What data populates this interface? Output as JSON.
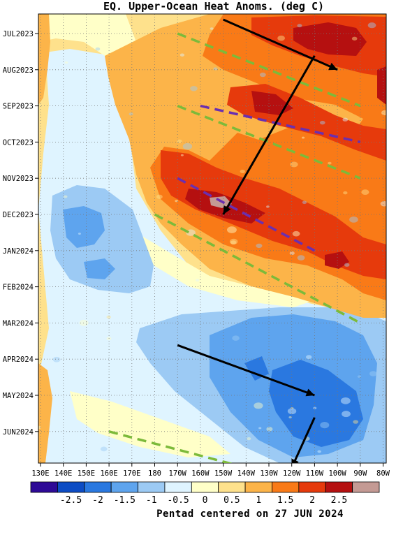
{
  "chart_data": {
    "type": "heatmap",
    "title": "EQ. Upper-Ocean Heat Anoms. (deg C)",
    "footer": "Pentad centered on 27 JUN 2024",
    "x_ticks": [
      "130E",
      "140E",
      "150E",
      "160E",
      "170E",
      "180",
      "170W",
      "160W",
      "150W",
      "140W",
      "130W",
      "120W",
      "110W",
      "100W",
      "90W",
      "80W"
    ],
    "y_ticks": [
      "JUL2023",
      "AUG2023",
      "SEP2023",
      "OCT2023",
      "NOV2023",
      "DEC2023",
      "JAN2024",
      "FEB2024",
      "MAR2024",
      "APR2024",
      "MAY2024",
      "JUN2024"
    ],
    "colorbar": {
      "labels": [
        "-2.5",
        "-2",
        "-1.5",
        "-1",
        "-0.5",
        "0",
        "0.5",
        "1",
        "1.5",
        "2",
        "2.5"
      ],
      "colors": [
        "#2e0a96",
        "#0d4cc4",
        "#2a78e0",
        "#5ea4ee",
        "#9ccaf4",
        "#dff4ff",
        "#ffffc8",
        "#fee18c",
        "#fcb449",
        "#f97a17",
        "#e63a0c",
        "#b51010",
        "#c49a94"
      ]
    },
    "anomaly_features": [
      {
        "region": "eastern Pacific, mid-2023 to early 2024",
        "value_range": [
          1.0,
          2.5
        ],
        "sign": "warm"
      },
      {
        "region": "central/eastern Pacific, Mar-Jun 2024",
        "value_range": [
          -2.0,
          -0.5
        ],
        "sign": "cool"
      },
      {
        "region": "western Pacific, Nov 2023 - Feb 2024",
        "value_range": [
          -1.5,
          -0.5
        ],
        "sign": "cool"
      }
    ],
    "annotations": {
      "arrows": [
        {
          "from": [
            "150W",
            "JUL2023"
          ],
          "to": [
            "100W",
            "AUG2023"
          ]
        },
        {
          "from": [
            "110W",
            "AUG2023"
          ],
          "to": [
            "150W",
            "DEC2023"
          ]
        },
        {
          "from": [
            "170W",
            "APR2024"
          ],
          "to": [
            "110W",
            "MAY2024"
          ]
        },
        {
          "from": [
            "110W",
            "JUN2024"
          ],
          "to": [
            "120W",
            "JUL2024"
          ]
        }
      ],
      "dashed_lines": [
        {
          "color": "green",
          "from": [
            "170W",
            "JUL2023"
          ],
          "to": [
            "90W",
            "SEP2023"
          ]
        },
        {
          "color": "purple",
          "from": [
            "160W",
            "SEP2023"
          ],
          "to": [
            "90W",
            "OCT2023"
          ]
        },
        {
          "color": "green",
          "from": [
            "170W",
            "SEP2023"
          ],
          "to": [
            "90W",
            "NOV2023"
          ]
        },
        {
          "color": "purple",
          "from": [
            "170W",
            "NOV2023"
          ],
          "to": [
            "110W",
            "JAN2024"
          ]
        },
        {
          "color": "green",
          "from": [
            "180",
            "DEC2023"
          ],
          "to": [
            "90W",
            "MAR2024"
          ]
        },
        {
          "color": "green",
          "from": [
            "160E",
            "JUN2024"
          ],
          "to": [
            "140W",
            "JUL2024"
          ]
        }
      ]
    }
  }
}
